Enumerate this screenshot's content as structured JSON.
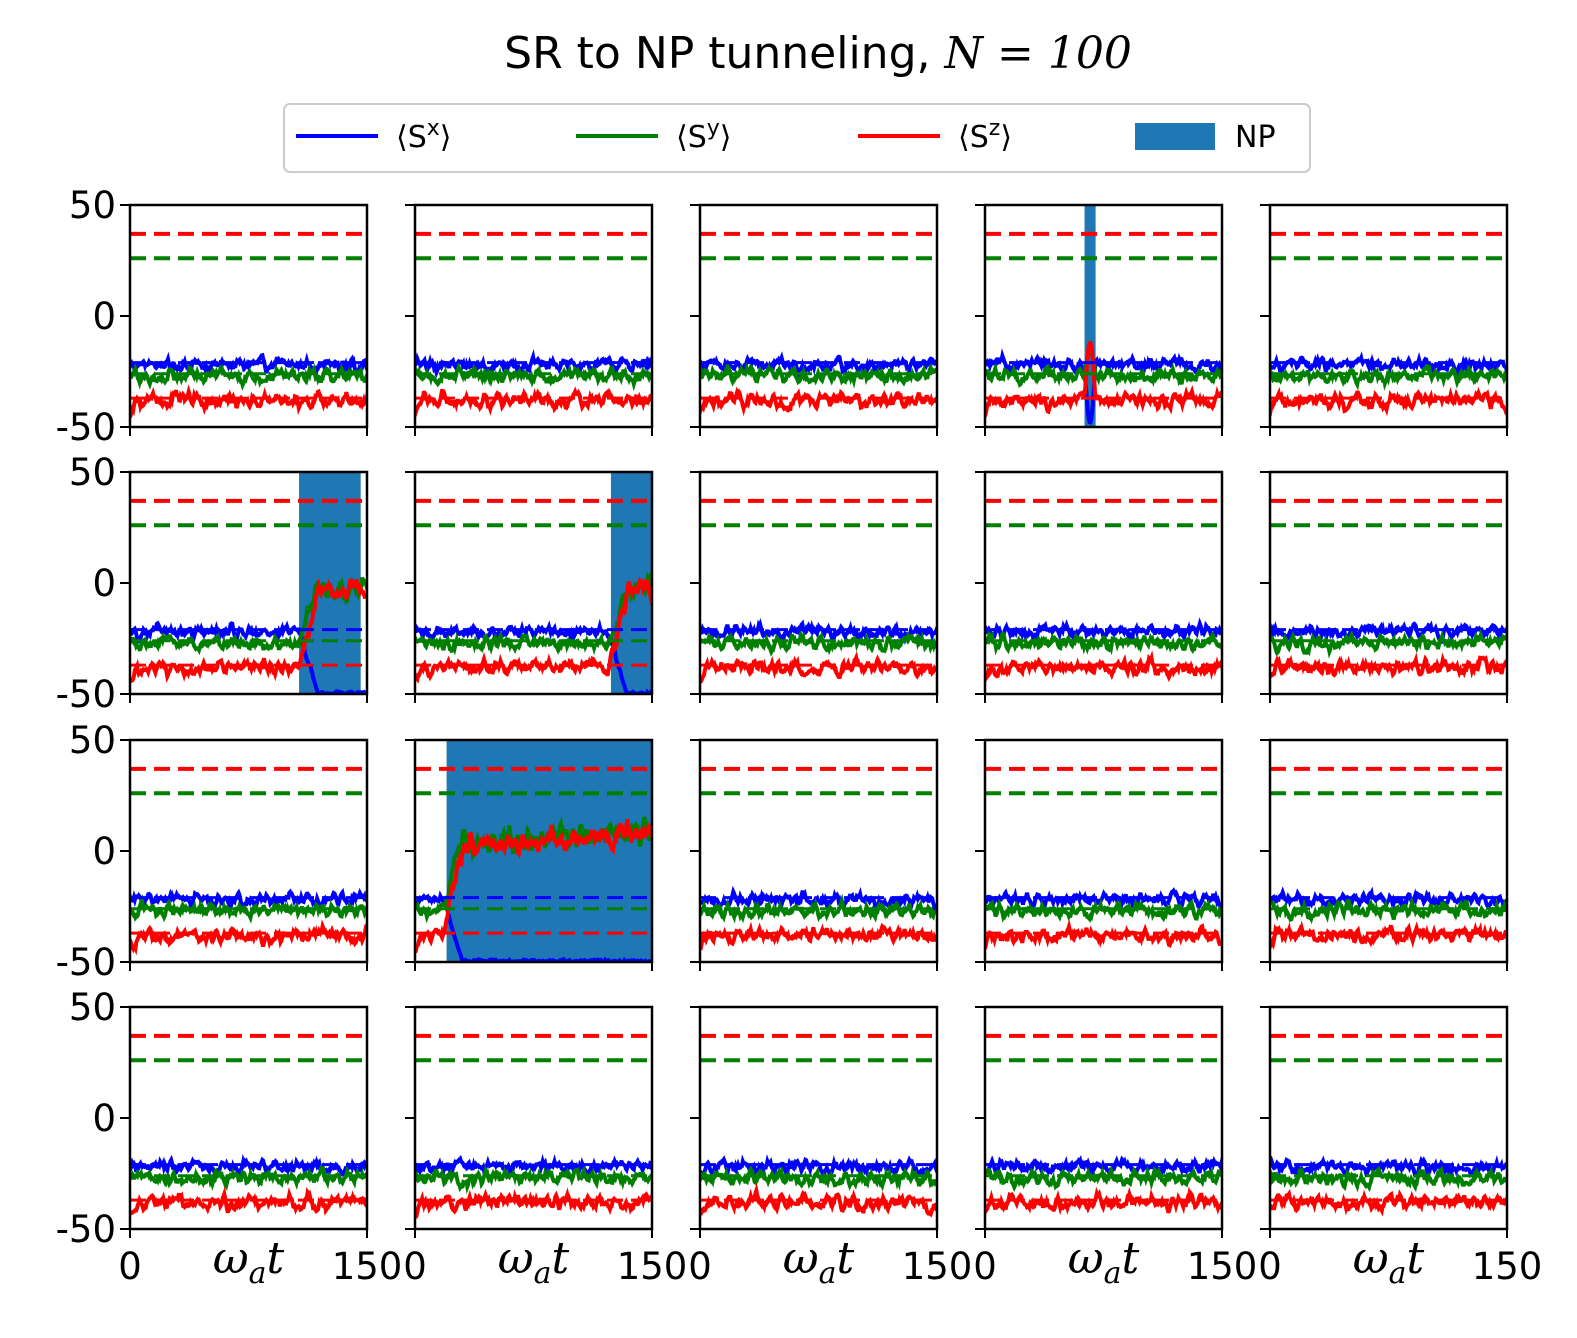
{
  "figure": {
    "title_prefix": "SR to NP tunneling, ",
    "title_math": "N = 100"
  },
  "legend": {
    "placement": "top-center",
    "entries": [
      {
        "label": "⟨S",
        "sup": "x",
        "suffix": "⟩",
        "color": "#0000ff",
        "kind": "line"
      },
      {
        "label": "⟨S",
        "sup": "y",
        "suffix": "⟩",
        "color": "#008000",
        "kind": "line"
      },
      {
        "label": "⟨S",
        "sup": "z",
        "suffix": "⟩",
        "color": "#ff0000",
        "kind": "line"
      },
      {
        "label": "NP",
        "sup": "",
        "suffix": "",
        "color": "#1f77b4",
        "kind": "patch"
      }
    ]
  },
  "chart_data": {
    "type": "line",
    "layout": "4x5 grid of subplots",
    "xlabel": "ωat",
    "xlabel_base": "ω",
    "xlabel_sub": "a",
    "xlabel_tail": "t",
    "xlim": [
      0,
      150
    ],
    "ylim": [
      -50,
      50
    ],
    "xticks": [
      "0",
      "150"
    ],
    "yticks": [
      "50",
      "0",
      "-50"
    ],
    "grid": false,
    "reference_lines": {
      "dashed_upper": [
        {
          "series": "Sz",
          "value": 37,
          "color": "#ff0000"
        },
        {
          "series": "Sy",
          "value": 26,
          "color": "#008000"
        }
      ],
      "dashed_lower": [
        {
          "series": "Sx",
          "value": -21,
          "color": "#0000ff"
        },
        {
          "series": "Sy",
          "value": -26,
          "color": "#008000"
        },
        {
          "series": "Sz",
          "value": -37,
          "color": "#ff0000"
        }
      ]
    },
    "series_colors": {
      "Sx": "#0000ff",
      "Sy": "#008000",
      "Sz": "#ff0000",
      "NP": "#1f77b4"
    },
    "panels": [
      {
        "row": 0,
        "col": 0,
        "np": [],
        "events": []
      },
      {
        "row": 0,
        "col": 1,
        "np": [],
        "events": []
      },
      {
        "row": 0,
        "col": 2,
        "np": [],
        "events": []
      },
      {
        "row": 0,
        "col": 3,
        "np": [
          [
            63,
            70
          ]
        ],
        "events": [
          {
            "type": "spike",
            "at": 63,
            "until": 70
          }
        ]
      },
      {
        "row": 0,
        "col": 4,
        "np": [],
        "events": []
      },
      {
        "row": 1,
        "col": 0,
        "np": [
          [
            107,
            146
          ]
        ],
        "events": [
          {
            "type": "transition",
            "at": 107
          }
        ]
      },
      {
        "row": 1,
        "col": 1,
        "np": [
          [
            124,
            150
          ]
        ],
        "events": [
          {
            "type": "transition",
            "at": 122
          }
        ]
      },
      {
        "row": 1,
        "col": 2,
        "np": [],
        "events": []
      },
      {
        "row": 1,
        "col": 3,
        "np": [],
        "events": []
      },
      {
        "row": 1,
        "col": 4,
        "np": [],
        "events": []
      },
      {
        "row": 2,
        "col": 0,
        "np": [],
        "events": []
      },
      {
        "row": 2,
        "col": 1,
        "np": [
          [
            20,
            150
          ]
        ],
        "events": [
          {
            "type": "transition",
            "at": 18
          }
        ]
      },
      {
        "row": 2,
        "col": 2,
        "np": [],
        "events": []
      },
      {
        "row": 2,
        "col": 3,
        "np": [],
        "events": []
      },
      {
        "row": 2,
        "col": 4,
        "np": [],
        "events": []
      },
      {
        "row": 3,
        "col": 0,
        "np": [],
        "events": []
      },
      {
        "row": 3,
        "col": 1,
        "np": [],
        "events": []
      },
      {
        "row": 3,
        "col": 2,
        "np": [],
        "events": []
      },
      {
        "row": 3,
        "col": 3,
        "np": [],
        "events": []
      },
      {
        "row": 3,
        "col": 4,
        "np": [],
        "events": []
      }
    ]
  }
}
